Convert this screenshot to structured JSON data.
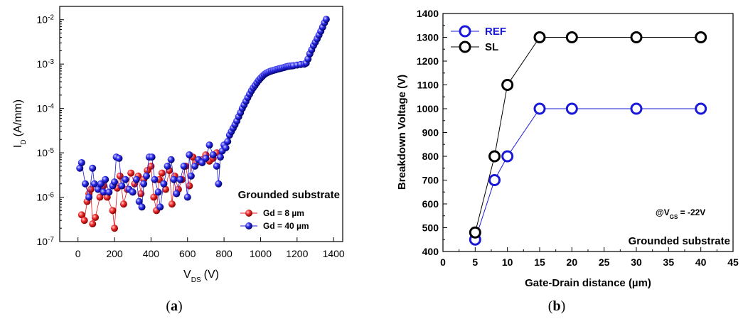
{
  "chart_data": [
    {
      "type": "scatter",
      "panel_label_open": "(",
      "panel_label_letter": "a",
      "panel_label_close": ")",
      "xlabel": {
        "main": "V",
        "sub": "DS",
        "unit": "(V)"
      },
      "ylabel": {
        "main": "I",
        "sub": "D",
        "unit": "(A/mm)"
      },
      "xlim": [
        -100,
        1450
      ],
      "ylim_log10": [
        -7,
        -1.7
      ],
      "y_scale": "log",
      "xticks": [
        0,
        200,
        400,
        600,
        800,
        1000,
        1200,
        1400
      ],
      "yticks": [
        {
          "value": -7,
          "base": "10",
          "exp": "-7"
        },
        {
          "value": -6,
          "base": "10",
          "exp": "-6"
        },
        {
          "value": -5,
          "base": "10",
          "exp": "-5"
        },
        {
          "value": -4,
          "base": "10",
          "exp": "-4"
        },
        {
          "value": -3,
          "base": "10",
          "exp": "-3"
        },
        {
          "value": -2,
          "base": "10",
          "exp": "-2"
        }
      ],
      "annotation": "Grounded substrate",
      "legend_position": "bottom-right",
      "series": [
        {
          "name": "Gd = 8 µm",
          "color": "#e8141c",
          "points": [
            [
              20,
              4e-07
            ],
            [
              35,
              3e-07
            ],
            [
              50,
              8e-07
            ],
            [
              60,
              1.2e-06
            ],
            [
              70,
              1.5e-06
            ],
            [
              80,
              2.5e-07
            ],
            [
              95,
              3.5e-07
            ],
            [
              120,
              1e-06
            ],
            [
              140,
              1.8e-06
            ],
            [
              160,
              1e-06
            ],
            [
              190,
              5e-07
            ],
            [
              200,
              2e-07
            ],
            [
              215,
              1.6e-06
            ],
            [
              230,
              3e-06
            ],
            [
              250,
              7e-07
            ],
            [
              270,
              1.5e-06
            ],
            [
              290,
              3.5e-06
            ],
            [
              310,
              2e-06
            ],
            [
              330,
              3e-06
            ],
            [
              345,
              1.2e-06
            ],
            [
              360,
              2.5e-06
            ],
            [
              380,
              4e-06
            ],
            [
              400,
              5e-06
            ],
            [
              415,
              1e-06
            ],
            [
              430,
              5e-07
            ],
            [
              445,
              2.5e-06
            ],
            [
              460,
              3.5e-06
            ],
            [
              480,
              1.5e-06
            ],
            [
              500,
              4e-06
            ],
            [
              515,
              7e-07
            ],
            [
              530,
              3e-06
            ],
            [
              550,
              1.5e-06
            ],
            [
              570,
              2.5e-06
            ],
            [
              590,
              5e-06
            ],
            [
              610,
              1.8e-06
            ],
            [
              630,
              8e-06
            ],
            [
              650,
              6e-06
            ],
            [
              680,
              7e-06
            ],
            [
              700,
              9e-06
            ],
            [
              720,
              6.5e-06
            ],
            [
              740,
              7.5e-06
            ],
            [
              760,
              1e-05
            ]
          ]
        },
        {
          "name": "Gd = 40 µm",
          "color": "#1a18d8",
          "points": [
            [
              10,
              4.5e-06
            ],
            [
              20,
              6e-06
            ],
            [
              40,
              2e-06
            ],
            [
              60,
              1e-06
            ],
            [
              80,
              4.5e-06
            ],
            [
              90,
              2e-06
            ],
            [
              110,
              1.5e-06
            ],
            [
              125,
              2e-06
            ],
            [
              140,
              1.3e-06
            ],
            [
              150,
              2.5e-06
            ],
            [
              170,
              1.3e-06
            ],
            [
              190,
              1.8e-06
            ],
            [
              200,
              2.2e-06
            ],
            [
              210,
              8e-06
            ],
            [
              225,
              7.5e-06
            ],
            [
              240,
              1.8e-06
            ],
            [
              260,
              2.5e-06
            ],
            [
              280,
              1.5e-06
            ],
            [
              300,
              1.3e-06
            ],
            [
              320,
              2.5e-06
            ],
            [
              335,
              8e-07
            ],
            [
              350,
              6e-07
            ],
            [
              360,
              2e-06
            ],
            [
              375,
              3e-06
            ],
            [
              390,
              8e-06
            ],
            [
              405,
              8e-06
            ],
            [
              420,
              2.5e-06
            ],
            [
              440,
              1.3e-06
            ],
            [
              450,
              6e-07
            ],
            [
              470,
              2e-06
            ],
            [
              490,
              5e-06
            ],
            [
              510,
              7e-06
            ],
            [
              525,
              2.5e-06
            ],
            [
              540,
              1.2e-06
            ],
            [
              560,
              2.5e-06
            ],
            [
              580,
              5e-06
            ],
            [
              600,
              1e-06
            ],
            [
              610,
              9e-06
            ],
            [
              620,
              3e-06
            ],
            [
              640,
              5e-06
            ],
            [
              660,
              7e-06
            ],
            [
              680,
              6e-06
            ],
            [
              700,
              7.5e-06
            ],
            [
              720,
              1.5e-05
            ],
            [
              740,
              9e-06
            ],
            [
              760,
              5e-06
            ],
            [
              770,
              2e-06
            ],
            [
              780,
              8e-06
            ],
            [
              790,
              1.1e-05
            ],
            [
              800,
              1.5e-05
            ],
            [
              810,
              1.3e-05
            ],
            [
              820,
              1.8e-05
            ],
            [
              830,
              2.5e-05
            ],
            [
              840,
              3e-05
            ],
            [
              850,
              3.6e-05
            ],
            [
              860,
              4.3e-05
            ],
            [
              870,
              5.2e-05
            ],
            [
              880,
              6.5e-05
            ],
            [
              890,
              8e-05
            ],
            [
              900,
              0.0001
            ],
            [
              910,
              0.00012
            ],
            [
              920,
              0.000145
            ],
            [
              930,
              0.000175
            ],
            [
              940,
              0.00021
            ],
            [
              950,
              0.00025
            ],
            [
              960,
              0.00029
            ],
            [
              970,
              0.00033
            ],
            [
              980,
              0.00038
            ],
            [
              990,
              0.00043
            ],
            [
              1000,
              0.00048
            ],
            [
              1010,
              0.00053
            ],
            [
              1020,
              0.00058
            ],
            [
              1030,
              0.00062
            ],
            [
              1040,
              0.00065
            ],
            [
              1050,
              0.00068
            ],
            [
              1060,
              0.0007
            ],
            [
              1070,
              0.00072
            ],
            [
              1080,
              0.00074
            ],
            [
              1090,
              0.00076
            ],
            [
              1100,
              0.00078
            ],
            [
              1110,
              0.0008
            ],
            [
              1120,
              0.00082
            ],
            [
              1130,
              0.00084
            ],
            [
              1140,
              0.00087
            ],
            [
              1150,
              0.00089
            ],
            [
              1160,
              0.0009
            ],
            [
              1170,
              0.00091
            ],
            [
              1180,
              0.00092
            ],
            [
              1200,
              0.00095
            ],
            [
              1220,
              0.00098
            ],
            [
              1240,
              0.001
            ],
            [
              1250,
              0.00105
            ],
            [
              1260,
              0.0013
            ],
            [
              1270,
              0.0017
            ],
            [
              1280,
              0.0021
            ],
            [
              1290,
              0.0026
            ],
            [
              1300,
              0.0031
            ],
            [
              1310,
              0.0037
            ],
            [
              1320,
              0.0045
            ],
            [
              1330,
              0.0055
            ],
            [
              1340,
              0.0068
            ],
            [
              1350,
              0.0085
            ],
            [
              1360,
              0.0102
            ]
          ]
        }
      ]
    },
    {
      "type": "line",
      "panel_label_open": "(",
      "panel_label_letter": "b",
      "panel_label_close": ")",
      "xlabel": "Gate-Drain distance (µm)",
      "ylabel": "Breakdown Voltage (V)",
      "xlim": [
        0,
        45
      ],
      "ylim": [
        400,
        1400
      ],
      "xticks": [
        0,
        5,
        10,
        15,
        20,
        25,
        30,
        35,
        40,
        45
      ],
      "yticks": [
        400,
        500,
        600,
        700,
        800,
        900,
        1000,
        1100,
        1200,
        1300,
        1400
      ],
      "annotation_vgs": {
        "prefix": "@V",
        "sub": "GS",
        "suffix": " = -22V"
      },
      "annotation": "Grounded substrate",
      "legend_position": "top-left",
      "series": [
        {
          "name": "REF",
          "color": "#1a18d8",
          "x": [
            5,
            8,
            10,
            15,
            20,
            30,
            40
          ],
          "values": [
            450,
            700,
            800,
            1000,
            1000,
            1000,
            1000
          ]
        },
        {
          "name": "SL",
          "color": "#000000",
          "x": [
            5,
            8,
            10,
            15,
            20,
            30,
            40
          ],
          "values": [
            480,
            800,
            1100,
            1300,
            1300,
            1300,
            1300
          ]
        }
      ]
    }
  ]
}
